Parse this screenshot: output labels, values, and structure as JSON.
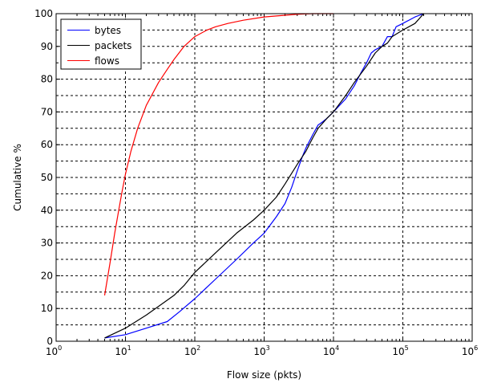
{
  "chart_data": {
    "type": "line",
    "xlabel": "Flow size (pkts)",
    "ylabel": "Cumulative %",
    "xscale": "log",
    "xlim": [
      1,
      1000000
    ],
    "ylim": [
      0,
      100
    ],
    "grid": true,
    "legend_position": "top-left",
    "x_tick_labels": [
      {
        "base": "10",
        "exp": "0"
      },
      {
        "base": "10",
        "exp": "1"
      },
      {
        "base": "10",
        "exp": "2"
      },
      {
        "base": "10",
        "exp": "3"
      },
      {
        "base": "10",
        "exp": "4"
      },
      {
        "base": "10",
        "exp": "5"
      },
      {
        "base": "10",
        "exp": "6"
      }
    ],
    "y_tick_labels": [
      "0",
      "10",
      "20",
      "30",
      "40",
      "50",
      "60",
      "70",
      "80",
      "90",
      "100"
    ],
    "series": [
      {
        "name": "bytes",
        "color": "#0000ff",
        "x": [
          5,
          10,
          20,
          40,
          60,
          100,
          200,
          400,
          700,
          1000,
          1500,
          2000,
          2500,
          3000,
          3500,
          4000,
          5000,
          6000,
          7000,
          8000,
          10000,
          15000,
          20000,
          25000,
          30000,
          35000,
          40000,
          50000,
          60000,
          70000,
          80000,
          100000,
          150000,
          200000
        ],
        "y": [
          1,
          2,
          4,
          6,
          9,
          13,
          19,
          25,
          30,
          33,
          38,
          42,
          47,
          52,
          56,
          59,
          63,
          66,
          67,
          68,
          70,
          74,
          78,
          82,
          85,
          88,
          89,
          90,
          93,
          93,
          96,
          97,
          99,
          100
        ]
      },
      {
        "name": "packets",
        "color": "#000000",
        "x": [
          5,
          10,
          20,
          50,
          70,
          100,
          200,
          400,
          700,
          1000,
          1500,
          2000,
          3000,
          4000,
          5000,
          6000,
          8000,
          10000,
          15000,
          20000,
          30000,
          40000,
          50000,
          60000,
          70000,
          100000,
          150000,
          200000
        ],
        "y": [
          1,
          4,
          8,
          14,
          17,
          21,
          27,
          33,
          37,
          40,
          44,
          48,
          54,
          58,
          62,
          65,
          68,
          70,
          75,
          79,
          84,
          88,
          90,
          91,
          93,
          95,
          97,
          100
        ]
      },
      {
        "name": "flows",
        "color": "#ff0000",
        "x": [
          5,
          6,
          7,
          8,
          9,
          10,
          12,
          15,
          20,
          30,
          40,
          50,
          70,
          100,
          150,
          200,
          300,
          500,
          1000,
          2000,
          3000,
          5000,
          10000
        ],
        "y": [
          14,
          24,
          33,
          40,
          46,
          51,
          58,
          65,
          72,
          79,
          83,
          86,
          90,
          93,
          95,
          96,
          97,
          98,
          99,
          99.5,
          99.8,
          100,
          100
        ]
      }
    ]
  }
}
